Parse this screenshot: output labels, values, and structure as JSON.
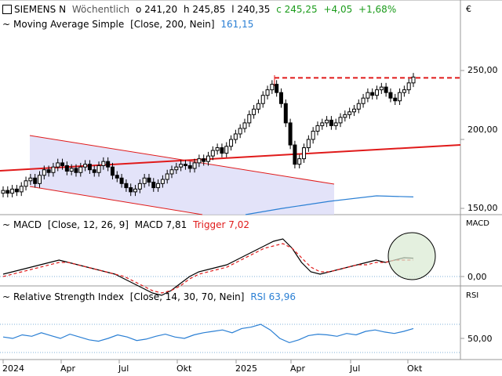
{
  "header": {
    "symbol": "SIEMENS N",
    "interval": "Wöchentlich",
    "open": "o 241,20",
    "high": "h 245,85",
    "low": "l 240,35",
    "close": "c 245,25",
    "change": "+4,05",
    "change_pct": "+1,68%"
  },
  "currency": "€",
  "price_panel": {
    "indicator_label": "Moving Average Simple",
    "indicator_params": "[Close, 200, Nein]",
    "indicator_value": "161,15",
    "y_ticks": [
      "250,00",
      "200,00",
      "150,00"
    ]
  },
  "macd_panel": {
    "label": "MACD",
    "params": "[Close, 12, 26, 9]",
    "value_label": "MACD 7,81",
    "trigger_label": "Trigger 7,02",
    "axis_title": "MACD",
    "y_ticks": [
      "0,00"
    ]
  },
  "rsi_panel": {
    "label": "Relative Strength Index",
    "params": "[Close, 14, 30, 70, Nein]",
    "value_label": "RSI 63,96",
    "axis_title": "RSI",
    "y_ticks": [
      "50,00"
    ]
  },
  "x_ticks": [
    "2024",
    "Apr",
    "Jul",
    "Okt",
    "2025",
    "Apr",
    "Jul",
    "Okt"
  ],
  "colors": {
    "candle": "#000000",
    "sma": "#2a7fd4",
    "trendline": "#e01a1a",
    "channel_fill": "#dcdcf7",
    "channel_line": "#e01a1a",
    "macd_line": "#000000",
    "trigger_line": "#e01a1a",
    "rsi_line": "#2a7fd4",
    "highlight_circle": "#d8ead2"
  },
  "chart_data": [
    {
      "type": "candlestick",
      "title": "SIEMENS N",
      "ylim": [
        145,
        260
      ],
      "x_range": [
        "2024-01",
        "2025-11"
      ],
      "weekly_closes": [
        163,
        161,
        164,
        162,
        166,
        170,
        172,
        168,
        174,
        178,
        176,
        180,
        183,
        181,
        177,
        179,
        176,
        180,
        182,
        178,
        176,
        181,
        184,
        180,
        174,
        172,
        168,
        165,
        162,
        164,
        168,
        172,
        169,
        165,
        168,
        171,
        175,
        178,
        180,
        182,
        181,
        179,
        183,
        186,
        184,
        188,
        192,
        194,
        190,
        195,
        200,
        204,
        208,
        212,
        218,
        222,
        226,
        232,
        236,
        240,
        234,
        226,
        212,
        196,
        182,
        186,
        194,
        200,
        206,
        210,
        212,
        214,
        210,
        212,
        216,
        218,
        220,
        222,
        226,
        230,
        234,
        232,
        236,
        238,
        234,
        230,
        228,
        234,
        236,
        241,
        245.25
      ],
      "sma_200": {
        "name": "Moving Average Simple",
        "start": 148,
        "end": 161.15
      },
      "last_close": 245.25
    },
    {
      "type": "line",
      "title": "MACD",
      "series": [
        {
          "name": "MACD",
          "values": [
            1,
            2,
            3,
            4,
            5,
            6,
            7,
            6,
            5,
            4,
            3,
            2,
            1,
            -1,
            -3,
            -5,
            -7,
            -8,
            -6,
            -3,
            0,
            2,
            3,
            4,
            5,
            7,
            9,
            11,
            13,
            15,
            16,
            12,
            6,
            2,
            1,
            2,
            3,
            4,
            5,
            6,
            7,
            6,
            7,
            8,
            7.81
          ]
        },
        {
          "name": "Trigger",
          "values": [
            0,
            1,
            2,
            3,
            4,
            5,
            6,
            6,
            5,
            4,
            3,
            2,
            1,
            0,
            -2,
            -4,
            -6,
            -7,
            -6,
            -4,
            -1,
            1,
            2,
            3,
            4,
            6,
            8,
            10,
            12,
            13,
            14,
            12,
            8,
            4,
            2,
            2,
            3,
            4,
            5,
            5,
            6,
            6,
            7,
            7,
            7.02
          ]
        }
      ],
      "last_values": {
        "MACD": 7.81,
        "Trigger": 7.02
      }
    },
    {
      "type": "line",
      "title": "Relative Strength Index",
      "series": [
        {
          "name": "RSI",
          "values": [
            52,
            50,
            55,
            53,
            58,
            54,
            50,
            56,
            52,
            48,
            46,
            50,
            55,
            52,
            47,
            49,
            53,
            56,
            52,
            50,
            55,
            58,
            60,
            62,
            58,
            64,
            66,
            70,
            62,
            50,
            44,
            48,
            54,
            56,
            55,
            53,
            57,
            55,
            60,
            62,
            59,
            57,
            60,
            63.96
          ]
        }
      ],
      "last_value": 63.96,
      "levels": [
        30,
        70
      ]
    }
  ]
}
